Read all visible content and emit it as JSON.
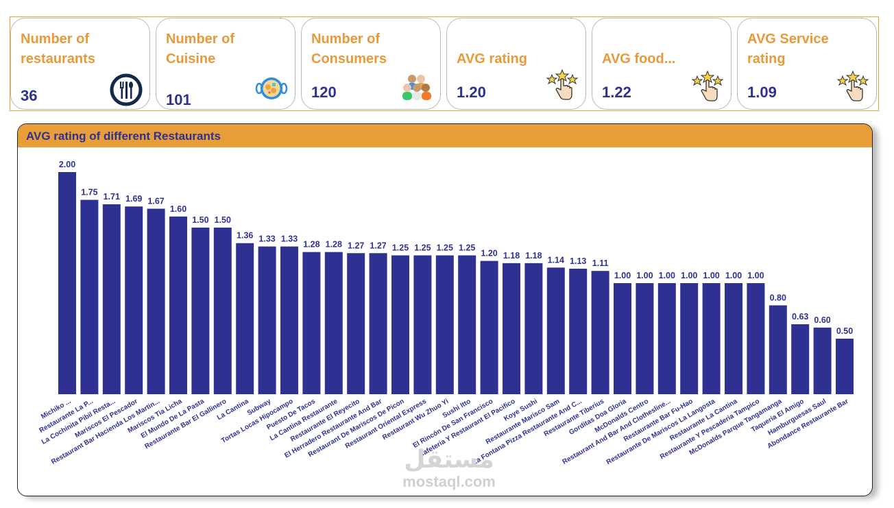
{
  "kpis": [
    {
      "title": "Number of restaurants",
      "value": "36",
      "icon": "plate-cutlery-icon"
    },
    {
      "title": "Number of Cuisine",
      "value": "101",
      "icon": "paella-dish-icon"
    },
    {
      "title": "Number of Consumers",
      "value": "120",
      "icon": "people-group-icon"
    },
    {
      "title": "AVG rating",
      "value": "1.20",
      "icon": "star-rating-hand-icon"
    },
    {
      "title": "AVG food...",
      "value": "1.22",
      "icon": "star-rating-hand-icon"
    },
    {
      "title": "AVG Service rating",
      "value": "1.09",
      "icon": "star-rating-hand-icon"
    }
  ],
  "colors": {
    "accent": "#e89d38",
    "bar": "#2e3192",
    "text_dark": "#2e3192"
  },
  "watermark": {
    "logo": "مستقل",
    "url": "mostaql.com"
  },
  "chart_data": {
    "type": "bar",
    "title": "AVG rating of different Restaurants",
    "xlabel": "",
    "ylabel": "",
    "ylim": [
      0,
      2.0
    ],
    "grid": false,
    "legend": "none",
    "categories": [
      "Michiko ...",
      "Restaurante La P...",
      "La Cochinita Pibil Resta...",
      "Mariscos El Pescador",
      "Restaurant Bar Hacienda Los Martin...",
      "Mariscos Tia Licha",
      "El Mundo De La Pasta",
      "Restaurante Bar El Gallinero",
      "La Cantina",
      "Subway",
      "Tortas Locas Hipocampo",
      "Puesto De Tacos",
      "La Cantina Restaurante",
      "Restaurante El Reyecito",
      "El Herradero Restaurante And Bar",
      "Restaurant De Mariscos De Picon",
      "Restaurant Oriental Express",
      "Restaurant Wu Zhuo Yi",
      "Sushi Itto",
      "El Rincón De San Francisco",
      "Cafeteria Y Restaurant El Pacifico",
      "Koye Sushi",
      "Restaurante Marisco Sam",
      "La Fontana Pizza Restaurante And C...",
      "Restaurante Tiberius",
      "Gorditas Doa Gloria",
      "McDonalds Centro",
      "Restaurant And Bar And Clothesline...",
      "Restaurante Bar Fu-Hao",
      "Restaurante De Mariscos La Langosta",
      "Restaurante La Cantina",
      "Restaurante Y Pescaderia Tampico",
      "McDonalds Parque Tangamanga",
      "Taqueria El Amigo",
      "Hamburguesas Saul",
      "Abondance Restaurante Bar"
    ],
    "values": [
      2.0,
      1.75,
      1.71,
      1.69,
      1.67,
      1.6,
      1.5,
      1.5,
      1.36,
      1.33,
      1.33,
      1.28,
      1.28,
      1.27,
      1.27,
      1.25,
      1.25,
      1.25,
      1.25,
      1.2,
      1.18,
      1.18,
      1.14,
      1.13,
      1.11,
      1.0,
      1.0,
      1.0,
      1.0,
      1.0,
      1.0,
      1.0,
      0.8,
      0.63,
      0.6,
      0.5
    ],
    "value_labels": [
      "2.00",
      "1.75",
      "1.71",
      "1.69",
      "1.67",
      "1.60",
      "1.50",
      "1.50",
      "1.36",
      "1.33",
      "1.33",
      "1.28",
      "1.28",
      "1.27",
      "1.27",
      "1.25",
      "1.25",
      "1.25",
      "1.25",
      "1.20",
      "1.18",
      "1.18",
      "1.14",
      "1.13",
      "1.11",
      "1.00",
      "1.00",
      "1.00",
      "1.00",
      "1.00",
      "1.00",
      "1.00",
      "0.80",
      "0.63",
      "0.60",
      "0.50"
    ]
  }
}
